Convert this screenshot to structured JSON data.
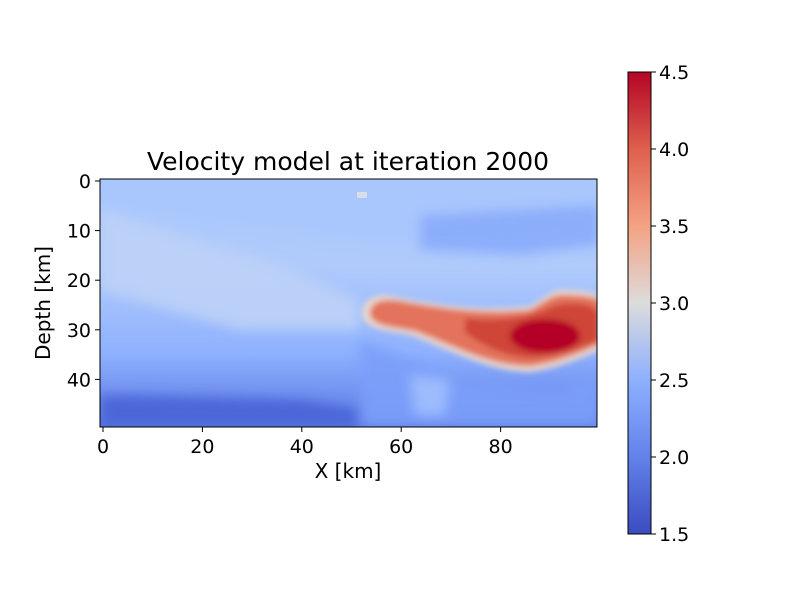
{
  "chart_data": {
    "type": "heatmap",
    "title": "Velocity model at iteration 2000",
    "xlabel": "X [km]",
    "ylabel": "Depth [km]",
    "xlim": [
      0,
      100
    ],
    "ylim": [
      50,
      0
    ],
    "x_ticks": [
      0,
      20,
      40,
      60,
      80
    ],
    "y_ticks": [
      0,
      10,
      20,
      30,
      40
    ],
    "colormap": "coolwarm",
    "colorbar": {
      "min": 1.5,
      "max": 4.5,
      "ticks": [
        "1.5",
        "2.0",
        "2.5",
        "3.0",
        "3.5",
        "4.0",
        "4.5"
      ]
    },
    "grid": false,
    "colorbar_placement": "right",
    "features": [
      {
        "kind": "background_gradient",
        "description": "velocity ~2.5 near surface decreasing to ~1.8 at bottom-left"
      },
      {
        "kind": "anomaly",
        "description": "high-velocity body from x≈52 to x≈100 at depth ≈24–38 km, peak ≈4.5 near x≈85–92, depth≈32"
      },
      {
        "kind": "anomaly",
        "description": "low-velocity band ≈2.0 across bottom (depth 45–50 km), left half"
      },
      {
        "kind": "point",
        "x": 52.5,
        "depth": 3.2,
        "value": 3.0
      }
    ]
  }
}
